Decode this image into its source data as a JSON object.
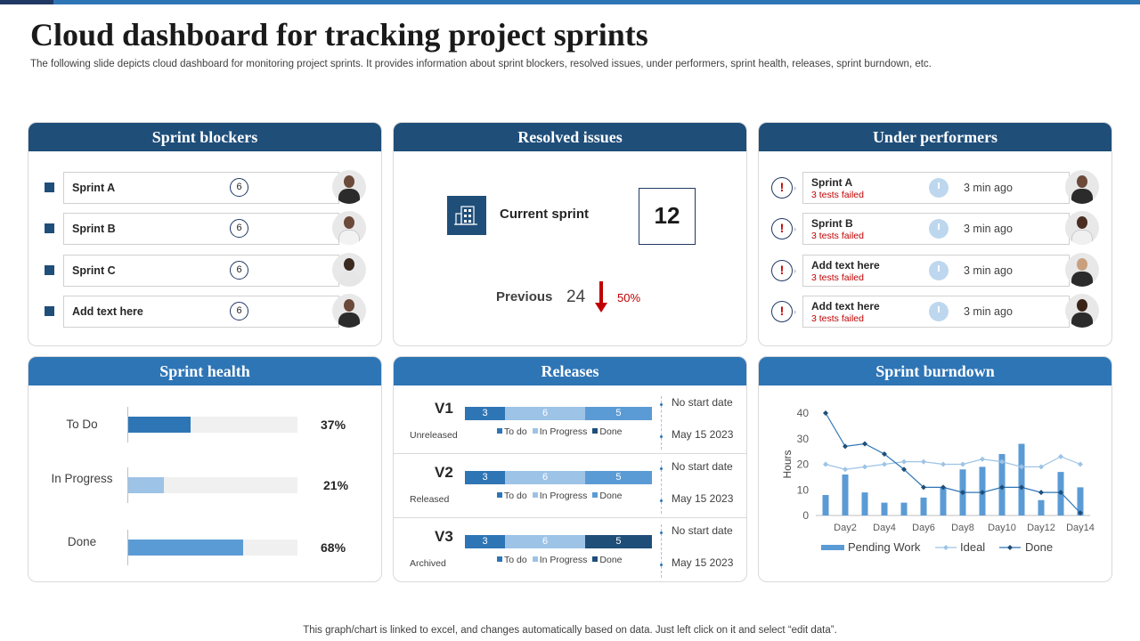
{
  "title": "Cloud dashboard for tracking project sprints",
  "subtitle": "The following slide depicts cloud dashboard for monitoring project sprints. It provides information about sprint blockers, resolved issues, under performers, sprint health, releases, sprint burndown, etc.",
  "footer": "This graph/chart is linked to excel,  and changes automatically based on data. Just left click on it and select “edit data”.",
  "colors": {
    "navy": "#1f4e79",
    "blue": "#2e75b6",
    "light_blue": "#9dc3e6",
    "red": "#c00000"
  },
  "sprint_blockers": {
    "heading": "Sprint blockers",
    "items": [
      {
        "label": "Sprint A",
        "count": "6"
      },
      {
        "label": "Sprint B",
        "count": "6"
      },
      {
        "label": "Sprint C",
        "count": "6"
      },
      {
        "label": "Add  text here",
        "count": "6"
      }
    ]
  },
  "resolved_issues": {
    "heading": "Resolved issues",
    "icon": "building-icon",
    "current_label": "Current sprint",
    "current_value": "12",
    "previous_label": "Previous",
    "previous_value": "24",
    "change_pct": "50%"
  },
  "under_performers": {
    "heading": "Under performers",
    "items": [
      {
        "name": "Sprint A",
        "status": "3 tests failed",
        "time": "3 min ago"
      },
      {
        "name": "Sprint B",
        "status": "3 tests failed",
        "time": "3 min ago"
      },
      {
        "name": "Add  text here",
        "status": "3 tests failed",
        "time": "3 min ago"
      },
      {
        "name": "Add  text here",
        "status": "3 tests failed",
        "time": "3 min ago"
      }
    ]
  },
  "sprint_health": {
    "heading": "Sprint health",
    "rows": [
      {
        "label": "To Do",
        "pct_text": "37%",
        "value": 0.37,
        "color": "#2e75b6"
      },
      {
        "label": "In Progress",
        "pct_text": "21%",
        "value": 0.21,
        "color": "#9dc3e6"
      },
      {
        "label": "Done",
        "pct_text": "68%",
        "value": 0.68,
        "color": "#5b9bd5"
      }
    ]
  },
  "releases": {
    "heading": "Releases",
    "legend": {
      "todo": "To do",
      "in_progress": "In Progress",
      "done": "Done"
    },
    "items": [
      {
        "version": "V1",
        "status": "Unreleased",
        "segments": [
          "3",
          "6",
          "5"
        ],
        "seg_values": [
          3,
          6,
          5
        ],
        "seg_colors": [
          "#2e75b6",
          "#9dc3e6",
          "#5b9bd5"
        ],
        "legend_colors": [
          "#2e75b6",
          "#9dc3e6",
          "#1f4e79"
        ],
        "start": "No start date",
        "date": "May 15 2023"
      },
      {
        "version": "V2",
        "status": "Released",
        "segments": [
          "3",
          "6",
          "5"
        ],
        "seg_values": [
          3,
          6,
          5
        ],
        "seg_colors": [
          "#2e75b6",
          "#9dc3e6",
          "#5b9bd5"
        ],
        "legend_colors": [
          "#2e75b6",
          "#9dc3e6",
          "#5b9bd5"
        ],
        "start": "No start date",
        "date": "May 15 2023"
      },
      {
        "version": "V3",
        "status": "Archived",
        "segments": [
          "3",
          "6",
          "5"
        ],
        "seg_values": [
          3,
          6,
          5
        ],
        "seg_colors": [
          "#2e75b6",
          "#9dc3e6",
          "#1f4e79"
        ],
        "legend_colors": [
          "#2e75b6",
          "#9dc3e6",
          "#1f4e79"
        ],
        "start": "No start date",
        "date": "May 15 2023"
      }
    ]
  },
  "sprint_burndown": {
    "heading": "Sprint burndown"
  },
  "chart_data": {
    "type": "bar",
    "title": "",
    "xlabel": "",
    "ylabel": "Hours",
    "ylim": [
      0,
      40
    ],
    "yticks": [
      "0",
      "10",
      "20",
      "30",
      "40"
    ],
    "x": [
      "Day1",
      "Day2",
      "Day3",
      "Day4",
      "Day5",
      "Day6",
      "Day7",
      "Day8",
      "Day9",
      "Day10",
      "Day11",
      "Day12",
      "Day13",
      "Day14"
    ],
    "x_tick_labels": [
      "Day2",
      "Day4",
      "Day6",
      "Day8",
      "Day10",
      "Day12",
      "Day14"
    ],
    "series": [
      {
        "name": "Pending Work",
        "type": "bar",
        "color": "#5b9bd5",
        "values": [
          8,
          16,
          9,
          5,
          5,
          7,
          11,
          18,
          19,
          24,
          28,
          6,
          17,
          11
        ]
      },
      {
        "name": "Ideal",
        "type": "line",
        "color": "#9dc3e6",
        "values": [
          20,
          18,
          19,
          20,
          21,
          21,
          20,
          20,
          22,
          21,
          19,
          19,
          23,
          20
        ]
      },
      {
        "name": "Done",
        "type": "line",
        "color": "#2e75b6",
        "values": [
          40,
          27,
          28,
          24,
          18,
          11,
          11,
          9,
          9,
          11,
          11,
          9,
          9,
          1
        ]
      }
    ],
    "legend": "bottom"
  }
}
